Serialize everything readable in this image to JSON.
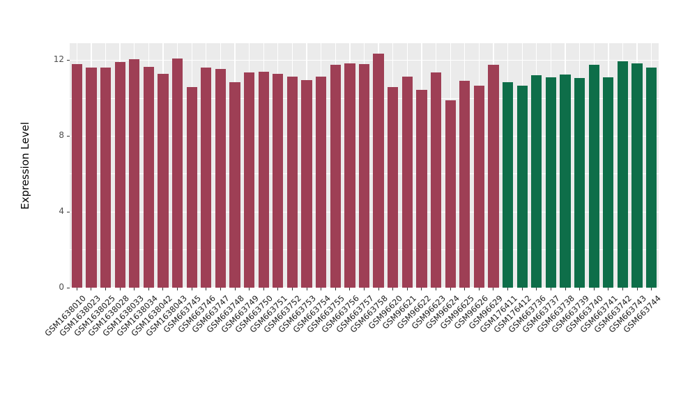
{
  "chart_data": {
    "type": "bar",
    "title": "",
    "xlabel": "",
    "ylabel": "Expression Level",
    "ylim": [
      0,
      12.9
    ],
    "yticks": [
      0,
      4,
      8,
      12
    ],
    "yticks_minor": [
      2,
      6,
      10
    ],
    "grid": true,
    "legend": "none",
    "panel_background": "#ebebeb",
    "gridline_color": "#ffffff",
    "group_split_index": 30,
    "colors": {
      "group1": "#9e3f55",
      "group2": "#0e6e49"
    },
    "categories": [
      "GSM1638010",
      "GSM1638023",
      "GSM1638025",
      "GSM1638028",
      "GSM1638033",
      "GSM1638034",
      "GSM1638042",
      "GSM1638043",
      "GSM663745",
      "GSM663746",
      "GSM663747",
      "GSM663748",
      "GSM663749",
      "GSM663750",
      "GSM663751",
      "GSM663752",
      "GSM663753",
      "GSM663754",
      "GSM663755",
      "GSM663756",
      "GSM663757",
      "GSM663758",
      "GSM96620",
      "GSM96621",
      "GSM96622",
      "GSM96623",
      "GSM96624",
      "GSM96625",
      "GSM96626",
      "GSM96629",
      "GSM176411",
      "GSM176412",
      "GSM663736",
      "GSM663737",
      "GSM663738",
      "GSM663739",
      "GSM663740",
      "GSM663741",
      "GSM663742",
      "GSM663743",
      "GSM663744"
    ],
    "values": [
      11.8,
      11.6,
      11.6,
      11.9,
      12.05,
      11.65,
      11.3,
      12.1,
      10.6,
      11.6,
      11.55,
      10.85,
      11.35,
      11.4,
      11.3,
      11.15,
      10.95,
      11.15,
      11.75,
      11.85,
      11.8,
      12.35,
      10.6,
      11.15,
      10.45,
      11.35,
      9.9,
      10.9,
      10.65,
      11.75,
      10.85,
      10.65,
      11.2,
      11.1,
      11.25,
      11.05,
      11.75,
      11.1,
      11.95,
      11.85,
      11.6
    ]
  }
}
